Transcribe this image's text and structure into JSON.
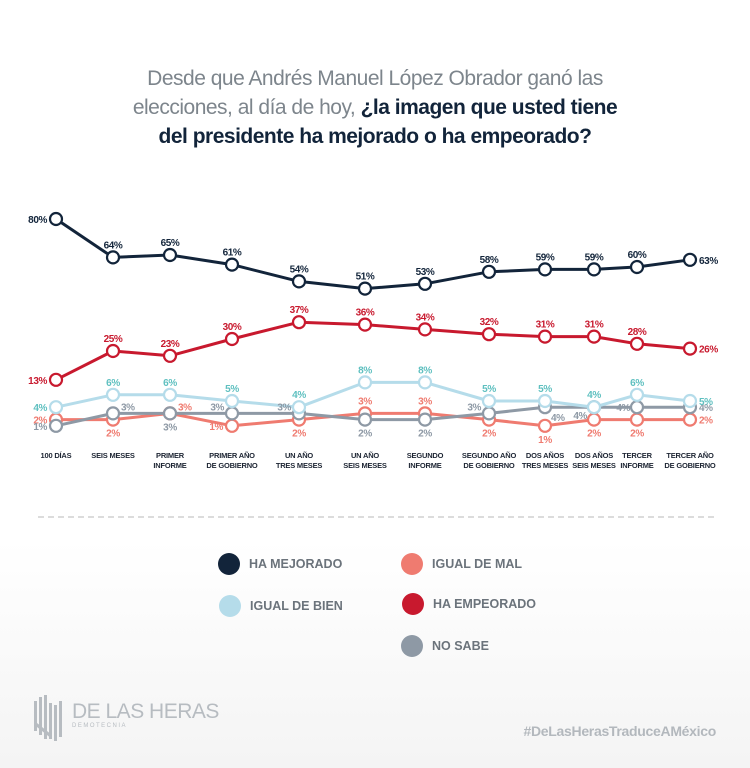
{
  "title": {
    "normal": "Desde que Andrés Manuel López Obrador ganó las elecciones, al día de hoy, ",
    "line1": "Desde que Andrés Manuel López Obrador ganó las",
    "line2_normal": "elecciones, al día de hoy, ",
    "line2_bold": "¿la imagen que usted tiene",
    "line3_bold": "del presidente ha mejorado o ha empeorado?"
  },
  "chart_data": {
    "type": "line",
    "title": "Desde que Andrés Manuel López Obrador ganó las elecciones, al día de hoy, ¿la imagen que usted tiene del presidente ha mejorado o ha empeorado?",
    "xlabel": "",
    "ylabel": "",
    "unit": "%",
    "grid": false,
    "legend_position": "bottom",
    "categories": [
      [
        "100 DÍAS"
      ],
      [
        "SEIS MESES"
      ],
      [
        "PRIMER",
        "INFORME"
      ],
      [
        "PRIMER AÑO",
        "DE GOBIERNO"
      ],
      [
        "UN AÑO",
        "TRES MESES"
      ],
      [
        "UN AÑO",
        "SEIS MESES"
      ],
      [
        "SEGUNDO",
        "INFORME"
      ],
      [
        "SEGUNDO AÑO",
        "DE GOBIERNO"
      ],
      [
        "DOS AÑOS",
        "TRES MESES"
      ],
      [
        "DOS AÑOS",
        "SEIS MESES"
      ],
      [
        "TERCER",
        "INFORME"
      ],
      [
        "TERCER AÑO",
        "DE GOBIERNO"
      ]
    ],
    "series": [
      {
        "name": "HA MEJORADO",
        "color": "#12243a",
        "label_color": "#12243a",
        "values": [
          80,
          64,
          65,
          61,
          54,
          51,
          53,
          58,
          59,
          59,
          60,
          63
        ]
      },
      {
        "name": "HA EMPEORADO",
        "color": "#c8192e",
        "label_color": "#c8192e",
        "values": [
          13,
          25,
          23,
          30,
          37,
          36,
          34,
          32,
          31,
          31,
          28,
          26
        ]
      },
      {
        "name": "IGUAL DE BIEN",
        "color": "#b5dcea",
        "label_color": "#5fc0c0",
        "values": [
          4,
          6,
          6,
          5,
          4,
          8,
          8,
          5,
          5,
          4,
          6,
          5
        ]
      },
      {
        "name": "IGUAL DE MAL",
        "color": "#ef7b70",
        "label_color": "#ef7b70",
        "values": [
          2,
          2,
          3,
          1,
          2,
          3,
          3,
          2,
          1,
          2,
          2,
          2
        ]
      },
      {
        "name": "NO SABE",
        "color": "#8e99a5",
        "label_color": "#8e99a5",
        "values": [
          1,
          3,
          3,
          3,
          3,
          2,
          2,
          3,
          4,
          4,
          4,
          4
        ]
      }
    ]
  },
  "legend": [
    {
      "label": "HA MEJORADO",
      "color": "#12243a"
    },
    {
      "label": "IGUAL DE MAL",
      "color": "#ef7b70"
    },
    {
      "label": "IGUAL DE BIEN",
      "color": "#b5dcea"
    },
    {
      "label": "HA EMPEORADO",
      "color": "#c8192e"
    },
    {
      "label": "NO SABE",
      "color": "#8e99a5"
    }
  ],
  "footer": {
    "logo_name": "DE LAS HERAS",
    "logo_sub": "DEMOTECNIA",
    "hashtag": "#DeLasHerasTraduceAMéxico"
  }
}
